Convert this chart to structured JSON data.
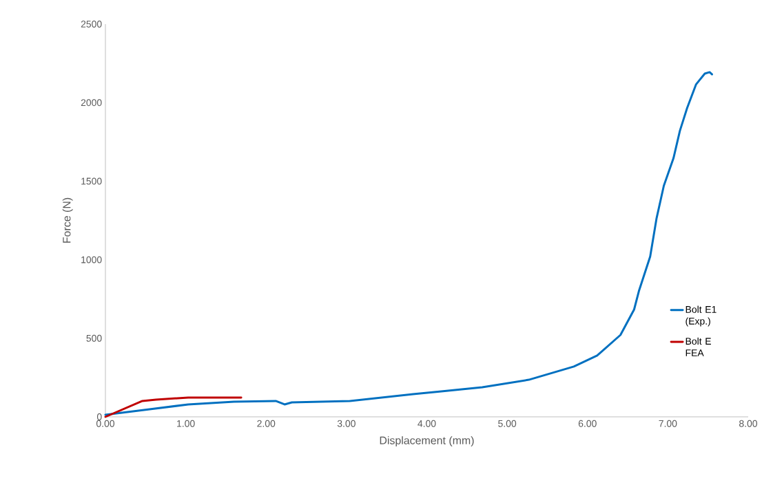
{
  "chart_data": {
    "type": "line",
    "xlabel": "Displacement (mm)",
    "ylabel": "Force (N)",
    "xlim": [
      0,
      8
    ],
    "ylim": [
      0,
      2500
    ],
    "xticks": [
      {
        "value": 0,
        "label": "0.00"
      },
      {
        "value": 1,
        "label": "1.00"
      },
      {
        "value": 2,
        "label": "2.00"
      },
      {
        "value": 3,
        "label": "3.00"
      },
      {
        "value": 4,
        "label": "4.00"
      },
      {
        "value": 5,
        "label": "5.00"
      },
      {
        "value": 6,
        "label": "6.00"
      },
      {
        "value": 7,
        "label": "7.00"
      },
      {
        "value": 8,
        "label": "8.00"
      }
    ],
    "yticks": [
      0,
      500,
      1000,
      1500,
      2000,
      2500
    ],
    "grid": false,
    "legend": "right",
    "marker": "none",
    "line_style": "solid",
    "series": [
      {
        "name": "Bolt E1 (Exp.)",
        "color": "#0070c0",
        "x": [
          0,
          0.55,
          1.03,
          1.6,
          2.12,
          2.23,
          2.32,
          3.04,
          3.83,
          4.18,
          4.69,
          5.27,
          5.83,
          6.12,
          6.41,
          6.58,
          6.64,
          6.78,
          6.86,
          6.95,
          7.07,
          7.15,
          7.24,
          7.35,
          7.46,
          7.52,
          7.55
        ],
        "values": [
          13,
          48,
          79,
          96,
          101,
          79,
          92,
          101,
          144,
          162,
          188,
          236,
          320,
          390,
          521,
          683,
          801,
          1020,
          1265,
          1471,
          1646,
          1821,
          1966,
          2115,
          2185,
          2194,
          2180
        ]
      },
      {
        "name": "Bolt E FEA",
        "color": "#c00000",
        "x": [
          0,
          0.46,
          0.63,
          1.03,
          1.69
        ],
        "values": [
          0,
          101,
          109,
          123,
          123
        ]
      }
    ]
  }
}
